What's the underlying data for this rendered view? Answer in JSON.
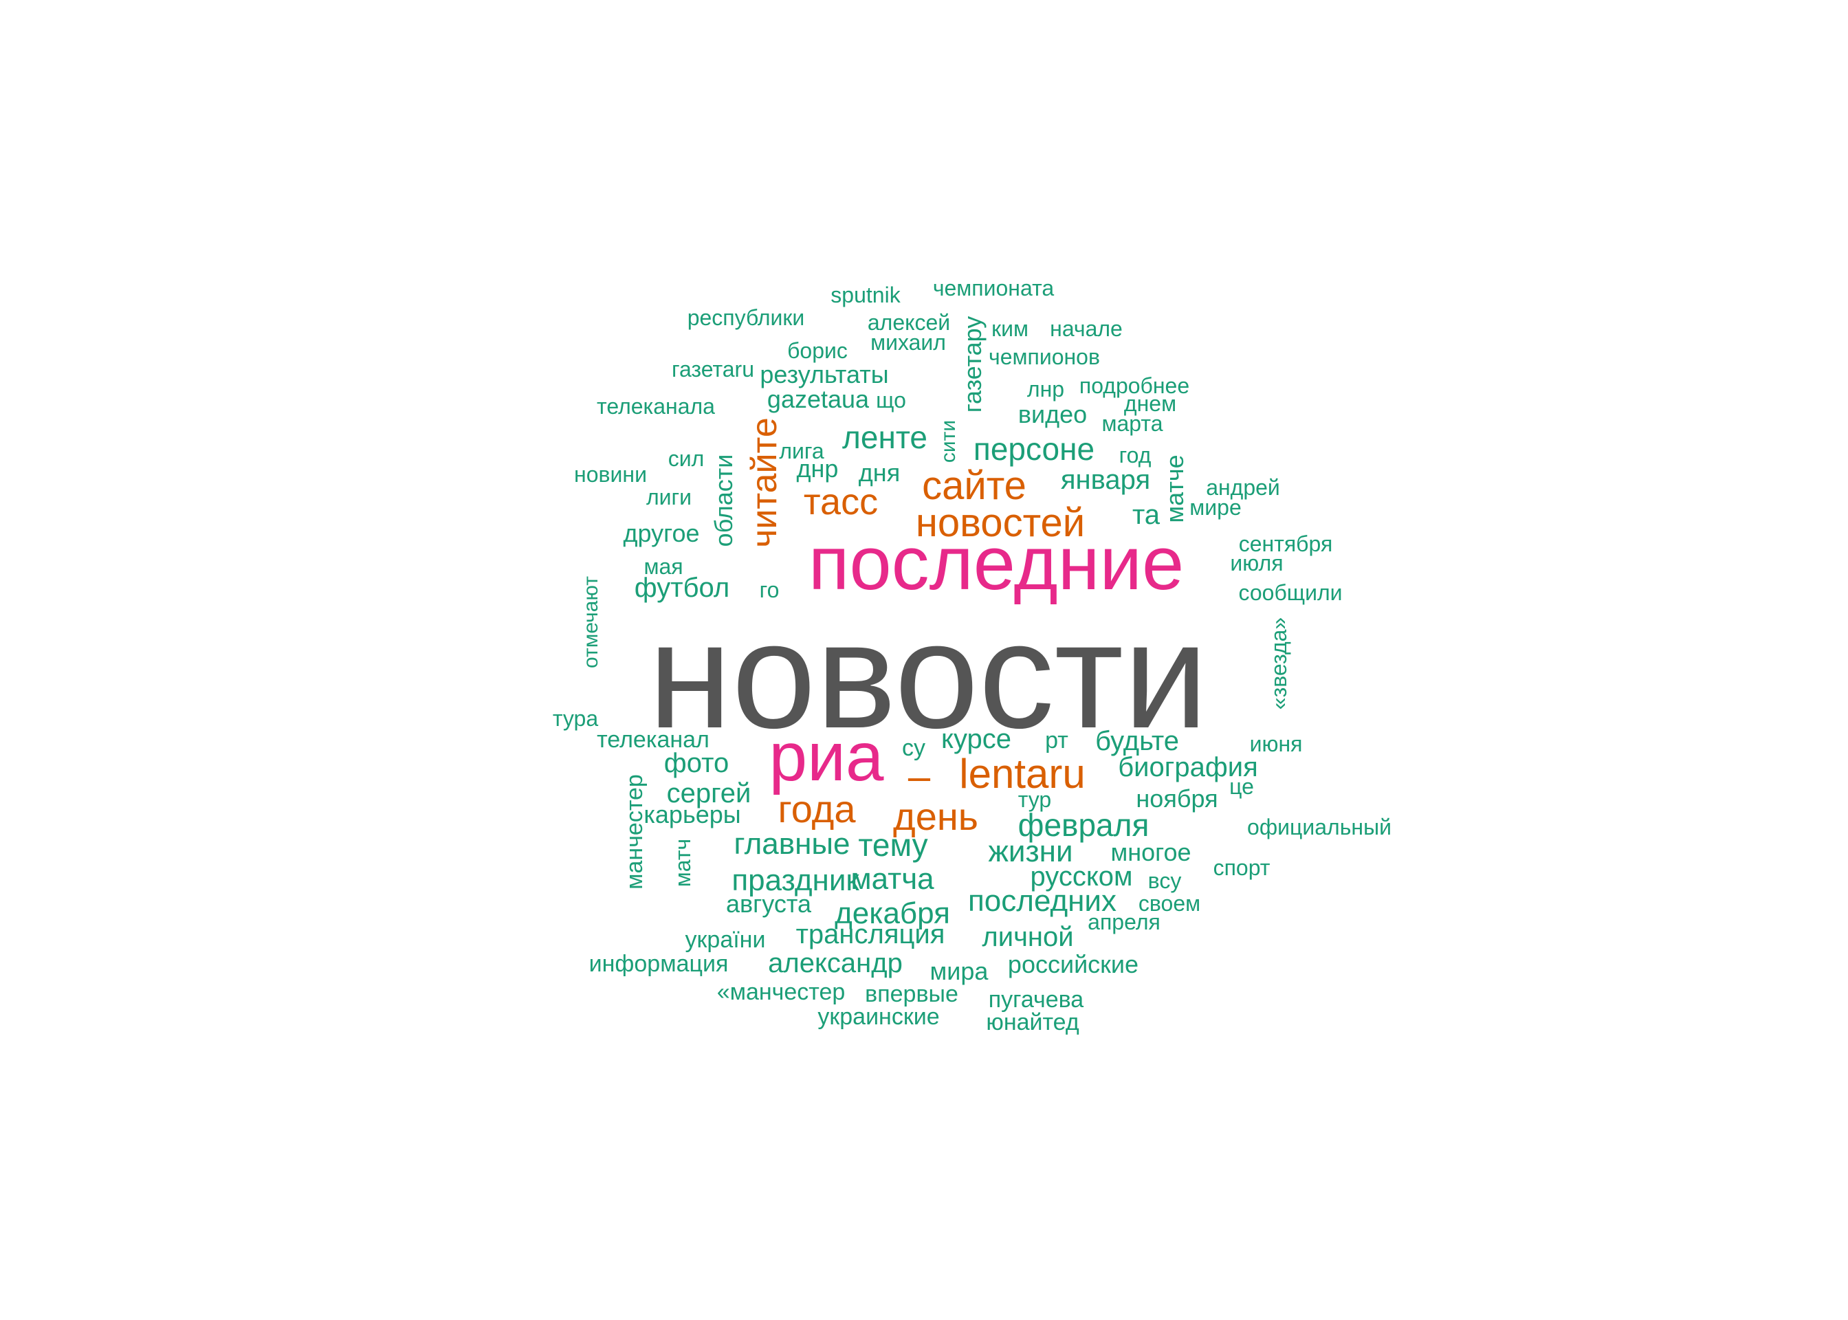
{
  "colors": {
    "gray": "#555555",
    "magenta": "#e7298a",
    "orange": "#d95f02",
    "green": "#1b9e77"
  },
  "words": [
    {
      "text": "новости",
      "color": "gray"
    },
    {
      "text": "последние",
      "color": "magenta"
    },
    {
      "text": "риа",
      "color": "magenta"
    },
    {
      "text": "–",
      "color": "orange"
    },
    {
      "text": "lentaru",
      "color": "orange"
    },
    {
      "text": "новостей",
      "color": "orange"
    },
    {
      "text": "сайте",
      "color": "orange"
    },
    {
      "text": "тасс",
      "color": "orange"
    },
    {
      "text": "читайте",
      "color": "orange"
    },
    {
      "text": "года",
      "color": "orange"
    },
    {
      "text": "день",
      "color": "orange"
    },
    {
      "text": "sputnik",
      "color": "green"
    },
    {
      "text": "чемпионата",
      "color": "green"
    },
    {
      "text": "республики",
      "color": "green"
    },
    {
      "text": "алексей",
      "color": "green"
    },
    {
      "text": "ким",
      "color": "green"
    },
    {
      "text": "начале",
      "color": "green"
    },
    {
      "text": "борис",
      "color": "green"
    },
    {
      "text": "михаил",
      "color": "green"
    },
    {
      "text": "газетару",
      "color": "green"
    },
    {
      "text": "чемпионов",
      "color": "green"
    },
    {
      "text": "газетаru",
      "color": "green"
    },
    {
      "text": "результаты",
      "color": "green"
    },
    {
      "text": "подробнее",
      "color": "green"
    },
    {
      "text": "gazetaua",
      "color": "green"
    },
    {
      "text": "що",
      "color": "green"
    },
    {
      "text": "лнр",
      "color": "green"
    },
    {
      "text": "телеканала",
      "color": "green"
    },
    {
      "text": "днем",
      "color": "green"
    },
    {
      "text": "видео",
      "color": "green"
    },
    {
      "text": "марта",
      "color": "green"
    },
    {
      "text": "сити",
      "color": "green"
    },
    {
      "text": "ленте",
      "color": "green"
    },
    {
      "text": "персоне",
      "color": "green"
    },
    {
      "text": "сил",
      "color": "green"
    },
    {
      "text": "области",
      "color": "green"
    },
    {
      "text": "лига",
      "color": "green"
    },
    {
      "text": "год",
      "color": "green"
    },
    {
      "text": "новини",
      "color": "green"
    },
    {
      "text": "днр",
      "color": "green"
    },
    {
      "text": "дня",
      "color": "green"
    },
    {
      "text": "матче",
      "color": "green"
    },
    {
      "text": "января",
      "color": "green"
    },
    {
      "text": "андрей",
      "color": "green"
    },
    {
      "text": "лиги",
      "color": "green"
    },
    {
      "text": "мире",
      "color": "green"
    },
    {
      "text": "та",
      "color": "green"
    },
    {
      "text": "другое",
      "color": "green"
    },
    {
      "text": "сентября",
      "color": "green"
    },
    {
      "text": "мая",
      "color": "green"
    },
    {
      "text": "июля",
      "color": "green"
    },
    {
      "text": "футбол",
      "color": "green"
    },
    {
      "text": "го",
      "color": "green"
    },
    {
      "text": "сообщили",
      "color": "green"
    },
    {
      "text": "отмечают",
      "color": "green"
    },
    {
      "text": "«звезда»",
      "color": "green"
    },
    {
      "text": "тура",
      "color": "green"
    },
    {
      "text": "курсе",
      "color": "green"
    },
    {
      "text": "рт",
      "color": "green"
    },
    {
      "text": "будьте",
      "color": "green"
    },
    {
      "text": "телеканал",
      "color": "green"
    },
    {
      "text": "июня",
      "color": "green"
    },
    {
      "text": "су",
      "color": "green"
    },
    {
      "text": "фото",
      "color": "green"
    },
    {
      "text": "биография",
      "color": "green"
    },
    {
      "text": "манчестер",
      "color": "green"
    },
    {
      "text": "сергей",
      "color": "green"
    },
    {
      "text": "це",
      "color": "green"
    },
    {
      "text": "ноября",
      "color": "green"
    },
    {
      "text": "тур",
      "color": "green"
    },
    {
      "text": "карьеры",
      "color": "green"
    },
    {
      "text": "февраля",
      "color": "green"
    },
    {
      "text": "официальный",
      "color": "green"
    },
    {
      "text": "главные",
      "color": "green"
    },
    {
      "text": "тему",
      "color": "green"
    },
    {
      "text": "матч",
      "color": "green"
    },
    {
      "text": "жизни",
      "color": "green"
    },
    {
      "text": "многое",
      "color": "green"
    },
    {
      "text": "спорт",
      "color": "green"
    },
    {
      "text": "праздник",
      "color": "green"
    },
    {
      "text": "матча",
      "color": "green"
    },
    {
      "text": "русском",
      "color": "green"
    },
    {
      "text": "всу",
      "color": "green"
    },
    {
      "text": "августа",
      "color": "green"
    },
    {
      "text": "последних",
      "color": "green"
    },
    {
      "text": "своем",
      "color": "green"
    },
    {
      "text": "декабря",
      "color": "green"
    },
    {
      "text": "апреля",
      "color": "green"
    },
    {
      "text": "україни",
      "color": "green"
    },
    {
      "text": "трансляция",
      "color": "green"
    },
    {
      "text": "личной",
      "color": "green"
    },
    {
      "text": "информация",
      "color": "green"
    },
    {
      "text": "александр",
      "color": "green"
    },
    {
      "text": "мира",
      "color": "green"
    },
    {
      "text": "российские",
      "color": "green"
    },
    {
      "text": "«манчестер",
      "color": "green"
    },
    {
      "text": "впервые",
      "color": "green"
    },
    {
      "text": "пугачева",
      "color": "green"
    },
    {
      "text": "украинские",
      "color": "green"
    },
    {
      "text": "юнайтед",
      "color": "green"
    }
  ]
}
